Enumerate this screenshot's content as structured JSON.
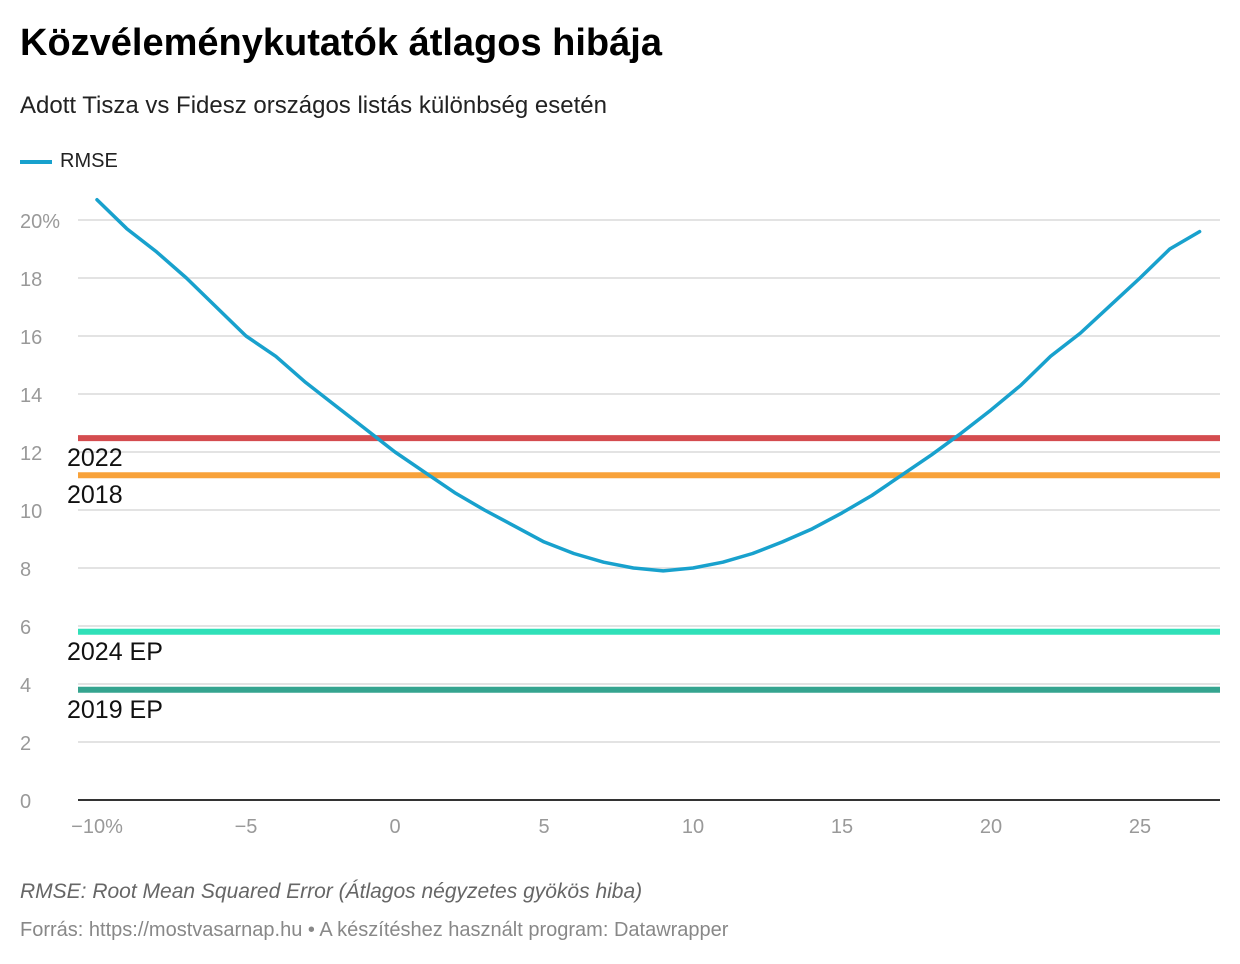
{
  "title": "Közvéleménykutatók átlagos hibája",
  "subtitle": "Adott Tisza vs Fidesz országos listás különbség esetén",
  "note": "RMSE: Root Mean Squared Error (Átlagos négyzetes gyökös hiba)",
  "source": "Forrás: https://mostvasarnap.hu • A készítéshez használt program: Datawrapper",
  "chart_data": {
    "type": "line",
    "title": "Közvéleménykutatók átlagos hibája",
    "xlabel": "",
    "ylabel": "",
    "xlim": [
      -10.5,
      27.6
    ],
    "ylim": [
      0,
      20
    ],
    "x_ticks": [
      -10,
      -5,
      0,
      5,
      10,
      15,
      20,
      25
    ],
    "x_tick_labels": [
      "−10%",
      "−5",
      "0",
      "5",
      "10",
      "15",
      "20",
      "25"
    ],
    "y_ticks": [
      0,
      2,
      4,
      6,
      8,
      10,
      12,
      14,
      16,
      18,
      20
    ],
    "y_tick_labels": [
      "0",
      "2",
      "4",
      "6",
      "8",
      "10",
      "12",
      "14",
      "16",
      "18",
      "20%"
    ],
    "grid": true,
    "legend": "top-left",
    "series": [
      {
        "name": "RMSE",
        "color": "#18a1cd",
        "x": [
          -10,
          -9,
          -8,
          -7,
          -6,
          -5,
          -4,
          -3,
          -2,
          -1,
          0,
          1,
          2,
          3,
          4,
          5,
          6,
          7,
          8,
          9,
          10,
          11,
          12,
          13,
          14,
          15,
          16,
          17,
          18,
          19,
          20,
          21,
          22,
          23,
          24,
          25,
          26,
          27
        ],
        "y": [
          20.7,
          19.7,
          18.9,
          18.0,
          17.0,
          16.0,
          15.3,
          14.4,
          13.6,
          12.8,
          12.0,
          11.3,
          10.6,
          10.0,
          9.45,
          8.9,
          8.5,
          8.2,
          8.0,
          7.9,
          8.0,
          8.2,
          8.5,
          8.9,
          9.35,
          9.9,
          10.5,
          11.2,
          11.9,
          12.65,
          13.45,
          14.3,
          15.3,
          16.1,
          17.05,
          18.0,
          19.0,
          19.6
        ]
      }
    ],
    "reference_lines": [
      {
        "label": "2022",
        "value": 12.48,
        "color": "#d44c4f"
      },
      {
        "label": "2018",
        "value": 11.2,
        "color": "#f8a23a"
      },
      {
        "label": "2024 EP",
        "value": 5.8,
        "color": "#30e0b8"
      },
      {
        "label": "2019 EP",
        "value": 3.8,
        "color": "#35a48f"
      }
    ]
  }
}
